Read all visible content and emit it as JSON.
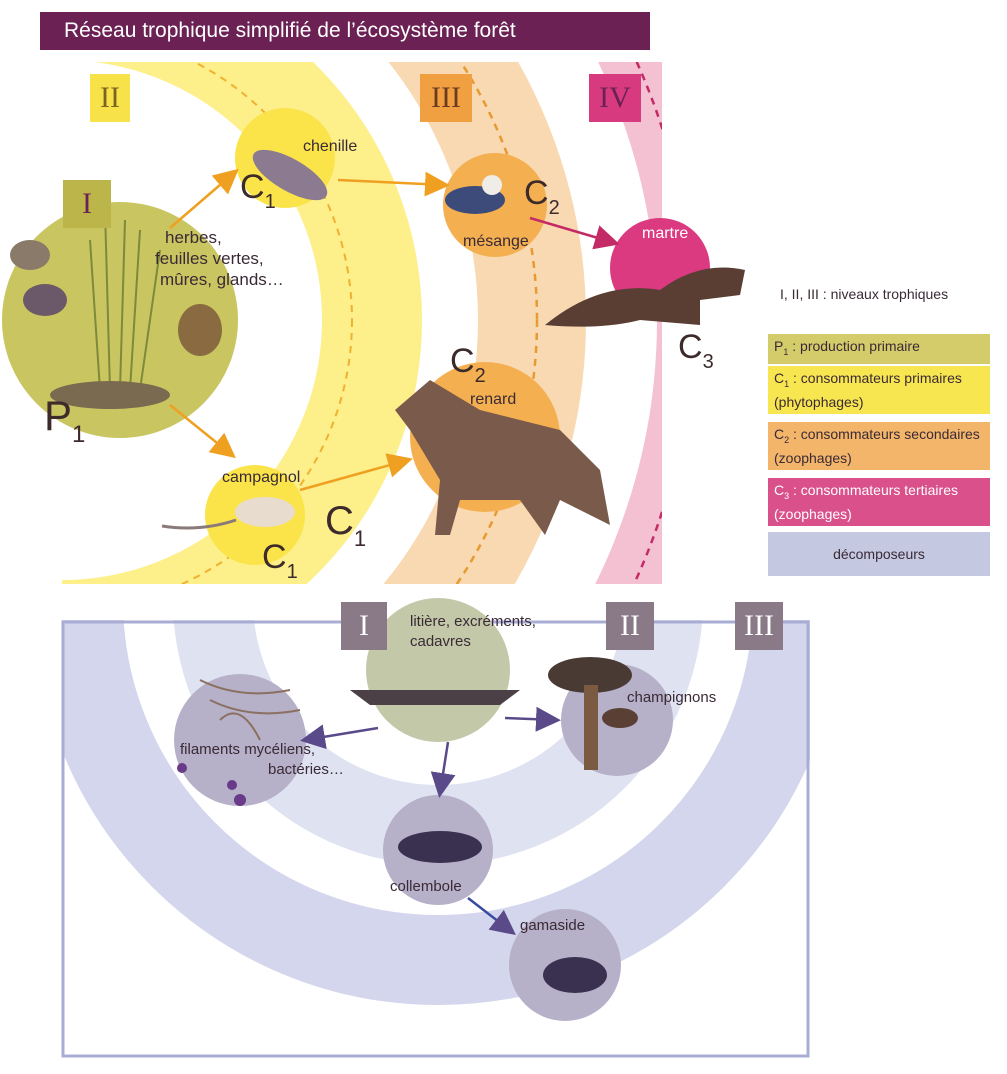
{
  "title": "Réseau trophique simplifié de l’écosystème forêt",
  "levels_top": [
    "I",
    "II",
    "III",
    "IV"
  ],
  "levels_bottom": [
    "I",
    "II",
    "III"
  ],
  "organisms": {
    "producers": "herbes, feuilles vertes, mûres, glands…",
    "chenille": "chenille",
    "campagnol": "campagnol",
    "mesange": "mésange",
    "renard": "renard",
    "martre": "martre"
  },
  "codes": {
    "p1": {
      "letter": "P",
      "sub": "1"
    },
    "c1": {
      "letter": "C",
      "sub": "1"
    },
    "c2": {
      "letter": "C",
      "sub": "2"
    },
    "c3": {
      "letter": "C",
      "sub": "3"
    }
  },
  "decomposers": {
    "litter": "litière, excréments, cadavres",
    "mycelium": "filaments mycéliens, bactéries…",
    "champignons": "champignons",
    "collembole": "collembole",
    "gamaside": "gamaside"
  },
  "legend": {
    "header": "I, II, III : niveaux trophiques",
    "items": [
      {
        "code": "P",
        "sub": "1",
        "text": " : production primaire",
        "color": "#d4cc6a"
      },
      {
        "code": "C",
        "sub": "1",
        "text": " : consommateurs primaires (phytophages)",
        "color": "#f8e650"
      },
      {
        "code": "C",
        "sub": "2",
        "text": " : consommateurs secondaires (zoophages)",
        "color": "#f2b56a"
      },
      {
        "code": "C",
        "sub": "3",
        "text": " : consommateurs tertiaires (zoophages)",
        "color": "#d9508a"
      },
      {
        "code": "",
        "sub": "",
        "text": "décomposeurs",
        "color": "#c4c8e0"
      }
    ]
  },
  "colors": {
    "title_bg": "#6b2153",
    "level1": "#c9c561",
    "level2": "#fdef8a",
    "level3": "#f9d9b2",
    "level4": "#f4c1d3",
    "decomp_band": "#d3d6ec",
    "decomp_frame": "#a9acd4"
  }
}
